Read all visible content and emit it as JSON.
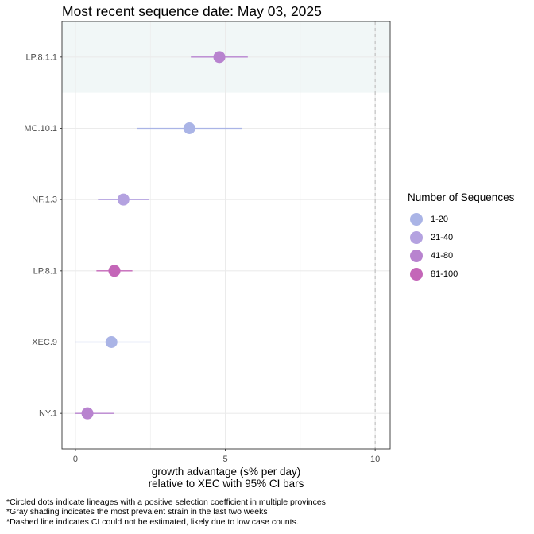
{
  "chart_data": {
    "type": "scatter",
    "title": "Most recent sequence date: May 03, 2025",
    "xlabel_line1": "growth advantage (s% per day)",
    "xlabel_line2": "relative to  XEC  with 95% CI bars",
    "xlim": [
      -0.45,
      10.5
    ],
    "x_ticks": [
      0,
      5,
      10
    ],
    "x_tick_labels": [
      "0",
      "5",
      "10"
    ],
    "dashed_line_x": 10,
    "grid": true,
    "lineages": [
      "LP.8.1.1",
      "MC.10.1",
      "NF.1.3",
      "LP.8.1",
      "XEC.9",
      "NY.1"
    ],
    "highlighted_lineage": "LP.8.1.1",
    "points": [
      {
        "lineage": "LP.8.1.1",
        "value": 4.8,
        "ci_low": 3.85,
        "ci_high": 5.75,
        "group": "41-80"
      },
      {
        "lineage": "MC.10.1",
        "value": 3.8,
        "ci_low": 2.05,
        "ci_high": 5.55,
        "group": "1-20"
      },
      {
        "lineage": "NF.1.3",
        "value": 1.6,
        "ci_low": 0.75,
        "ci_high": 2.45,
        "group": "21-40"
      },
      {
        "lineage": "LP.8.1",
        "value": 1.3,
        "ci_low": 0.7,
        "ci_high": 1.9,
        "group": "81-100"
      },
      {
        "lineage": "XEC.9",
        "value": 1.2,
        "ci_low": 0.0,
        "ci_high": 2.5,
        "group": "1-20"
      },
      {
        "lineage": "NY.1",
        "value": 0.4,
        "ci_low": 0.0,
        "ci_high": 1.3,
        "group": "41-80"
      }
    ],
    "legend": {
      "title": "Number of Sequences",
      "placement": "right",
      "items": [
        {
          "label": "1-20",
          "color": "#aab4e6"
        },
        {
          "label": "21-40",
          "color": "#b4a2e0"
        },
        {
          "label": "41-80",
          "color": "#b883cf"
        },
        {
          "label": "81-100",
          "color": "#c466b8"
        }
      ]
    },
    "colors": {
      "highlight_band": "#f1f7f7",
      "grid": "#ebebeb",
      "dashed_line": "#bdbdbd",
      "panel_border": "#333333"
    }
  },
  "footnotes": [
    "*Circled dots indicate lineages with a positive selection coefficient in multiple provinces",
    "*Gray shading indicates the most prevalent strain in the last two weeks",
    "*Dashed line indicates CI could not be estimated, likely due to low case counts."
  ]
}
